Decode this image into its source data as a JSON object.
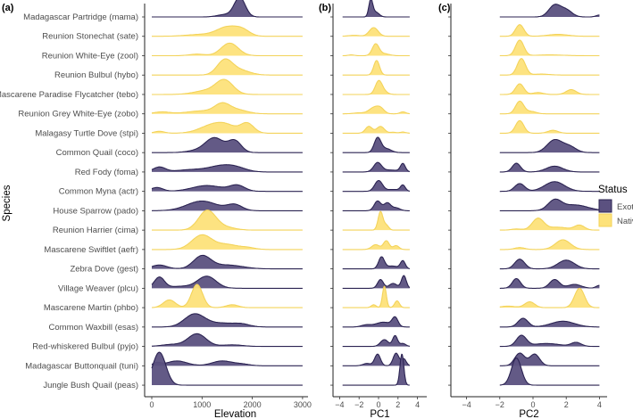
{
  "chart_data": {
    "type": "ridgeline",
    "ylabel": "Species",
    "legend": {
      "title": "Status",
      "placement": "right",
      "entries": [
        {
          "label": "Exotic",
          "fill": "#5b5180",
          "line": "#2b2352"
        },
        {
          "label": "Native",
          "fill": "#fde27a",
          "line": "#f3d35a"
        }
      ]
    },
    "panels": [
      {
        "tag": "(a)",
        "xlabel": "Elevation",
        "range": [
          0,
          3000
        ],
        "ticks": [
          0,
          1000,
          2000,
          3000
        ],
        "tick_labels": [
          "0",
          "1000",
          "2000",
          "3000"
        ]
      },
      {
        "tag": "(b)",
        "xlabel": "PC1",
        "range": [
          -3.7,
          3.2
        ],
        "ticks": [
          -4,
          -2,
          0,
          2,
          4
        ],
        "tick_labels": [
          "−4",
          "−2",
          "0",
          "2",
          "4"
        ]
      },
      {
        "tag": "(c)",
        "xlabel": "PC2",
        "range": [
          -2,
          4
        ],
        "ticks": [
          -4,
          -2,
          0,
          2,
          4
        ],
        "tick_labels": [
          "−4",
          "−2",
          "0",
          "2",
          "4"
        ]
      }
    ],
    "density_note": "each density is given as mixture components [mean, sd, relative peak height]",
    "species": [
      {
        "name": "Madagascar Partridge (mama)",
        "status": "Exotic",
        "d": [
          [
            [
              1750,
              110,
              1.0
            ],
            [
              1450,
              150,
              0.12
            ]
          ],
          [
            [
              -0.8,
              0.2,
              0.85
            ],
            [
              -0.3,
              0.35,
              0.25
            ]
          ],
          [
            [
              1.3,
              0.35,
              0.6
            ],
            [
              2.0,
              0.35,
              0.35
            ],
            [
              4,
              0.2,
              0.1
            ]
          ]
        ]
      },
      {
        "name": "Reunion Stonechat (sate)",
        "status": "Native",
        "d": [
          [
            [
              1500,
              200,
              0.45
            ],
            [
              1800,
              150,
              0.3
            ],
            [
              1000,
              300,
              0.1
            ]
          ],
          [
            [
              -0.5,
              0.45,
              0.45
            ],
            [
              -2.5,
              0.6,
              0.05
            ]
          ],
          [
            [
              -0.8,
              0.25,
              0.6
            ],
            [
              1.5,
              0.6,
              0.1
            ]
          ]
        ]
      },
      {
        "name": "Reunion White-Eye (zool)",
        "status": "Native",
        "d": [
          [
            [
              1550,
              170,
              0.65
            ],
            [
              900,
              150,
              0.08
            ]
          ],
          [
            [
              -0.3,
              0.35,
              0.6
            ],
            [
              -2.8,
              0.3,
              0.04
            ],
            [
              0.6,
              0.5,
              0.1
            ]
          ],
          [
            [
              -0.8,
              0.25,
              0.8
            ],
            [
              1,
              0.8,
              0.04
            ]
          ]
        ]
      },
      {
        "name": "Reunion Bulbul (hybo)",
        "status": "Native",
        "d": [
          [
            [
              1450,
              150,
              0.75
            ],
            [
              1750,
              200,
              0.25
            ]
          ],
          [
            [
              -0.2,
              0.3,
              0.75
            ]
          ],
          [
            [
              -0.7,
              0.25,
              0.85
            ],
            [
              0.5,
              0.5,
              0.05
            ]
          ]
        ]
      },
      {
        "name": "Mascarene Paradise Flycatcher (tebo)",
        "status": "Native",
        "d": [
          [
            [
              1450,
              170,
              0.7
            ],
            [
              1100,
              250,
              0.2
            ]
          ],
          [
            [
              0,
              0.35,
              0.65
            ],
            [
              0.5,
              0.4,
              0.15
            ]
          ],
          [
            [
              -0.8,
              0.25,
              0.55
            ],
            [
              0.3,
              0.3,
              0.1
            ],
            [
              2.3,
              0.3,
              0.25
            ]
          ]
        ]
      },
      {
        "name": "Reunion Grey White-Eye (zobo)",
        "status": "Native",
        "d": [
          [
            [
              1400,
              150,
              0.45
            ],
            [
              1000,
              300,
              0.15
            ],
            [
              1700,
              200,
              0.2
            ],
            [
              200,
              150,
              0.1
            ]
          ],
          [
            [
              -0.5,
              0.5,
              0.3
            ],
            [
              0.2,
              0.4,
              0.25
            ],
            [
              2.5,
              0.3,
              0.1
            ],
            [
              -2,
              0.6,
              0.05
            ]
          ],
          [
            [
              -0.8,
              0.25,
              0.65
            ],
            [
              -0.1,
              0.3,
              0.12
            ]
          ]
        ]
      },
      {
        "name": "Malagasy Turtle Dove (stpi)",
        "status": "Native",
        "d": [
          [
            [
              1200,
              250,
              0.4
            ],
            [
              1900,
              130,
              0.5
            ],
            [
              1500,
              200,
              0.3
            ],
            [
              150,
              100,
              0.1
            ]
          ],
          [
            [
              -1,
              0.35,
              0.35
            ],
            [
              0.2,
              0.4,
              0.35
            ],
            [
              1.5,
              0.3,
              0.05
            ],
            [
              2.5,
              0.3,
              0.06
            ]
          ],
          [
            [
              -0.8,
              0.25,
              0.65
            ],
            [
              1.2,
              0.3,
              0.15
            ]
          ]
        ]
      },
      {
        "name": "Common Quail (coco)",
        "status": "Exotic",
        "d": [
          [
            [
              1250,
              180,
              0.75
            ],
            [
              1650,
              130,
              0.6
            ],
            [
              900,
              200,
              0.1
            ]
          ],
          [
            [
              -0.1,
              0.35,
              0.75
            ],
            [
              0.8,
              0.5,
              0.2
            ]
          ],
          [
            [
              1.3,
              0.45,
              0.65
            ],
            [
              2.2,
              0.4,
              0.3
            ]
          ]
        ]
      },
      {
        "name": "Red Fody (foma)",
        "status": "Exotic",
        "d": [
          [
            [
              150,
              120,
              0.25
            ],
            [
              1400,
              250,
              0.3
            ],
            [
              800,
              300,
              0.12
            ],
            [
              1700,
              200,
              0.15
            ]
          ],
          [
            [
              -0.1,
              0.4,
              0.45
            ],
            [
              2.5,
              0.25,
              0.4
            ],
            [
              1.2,
              1,
              0.1
            ]
          ],
          [
            [
              -1,
              0.25,
              0.45
            ],
            [
              1.3,
              0.5,
              0.3
            ]
          ]
        ]
      },
      {
        "name": "Common Myna (actr)",
        "status": "Exotic",
        "d": [
          [
            [
              100,
              120,
              0.2
            ],
            [
              1100,
              300,
              0.3
            ],
            [
              1700,
              150,
              0.3
            ]
          ],
          [
            [
              0,
              0.4,
              0.55
            ],
            [
              2.5,
              0.25,
              0.3
            ],
            [
              1.5,
              0.7,
              0.1
            ]
          ],
          [
            [
              -0.8,
              0.3,
              0.4
            ],
            [
              1.3,
              0.6,
              0.5
            ]
          ]
        ]
      },
      {
        "name": "House Sparrow (pado)",
        "status": "Exotic",
        "d": [
          [
            [
              1000,
              300,
              0.5
            ],
            [
              1650,
              150,
              0.3
            ]
          ],
          [
            [
              -0.1,
              0.35,
              0.5
            ],
            [
              0.9,
              0.35,
              0.4
            ],
            [
              1.8,
              0.4,
              0.15
            ]
          ],
          [
            [
              1.3,
              0.4,
              0.5
            ],
            [
              2.5,
              0.8,
              0.3
            ]
          ]
        ]
      },
      {
        "name": "Reunion Harrier (cima)",
        "status": "Native",
        "d": [
          [
            [
              1100,
              170,
              1.0
            ],
            [
              1450,
              200,
              0.15
            ]
          ],
          [
            [
              0.2,
              0.25,
              0.95
            ],
            [
              0.8,
              0.25,
              0.25
            ]
          ],
          [
            [
              0.3,
              0.35,
              0.6
            ],
            [
              2.8,
              0.3,
              0.25
            ],
            [
              1.5,
              0.6,
              0.15
            ],
            [
              -1,
              0.3,
              0.06
            ]
          ]
        ]
      },
      {
        "name": "Mascarene Swiftlet (aefr)",
        "status": "Native",
        "d": [
          [
            [
              1000,
              200,
              0.75
            ],
            [
              1500,
              200,
              0.25
            ],
            [
              1900,
              150,
              0.1
            ]
          ],
          [
            [
              -0.3,
              0.4,
              0.25
            ],
            [
              0.8,
              0.3,
              0.45
            ],
            [
              1.8,
              0.3,
              0.2
            ]
          ],
          [
            [
              1.8,
              0.45,
              0.5
            ],
            [
              -0.8,
              0.3,
              0.1
            ]
          ]
        ]
      },
      {
        "name": "Zebra Dove (gest)",
        "status": "Exotic",
        "d": [
          [
            [
              1000,
              170,
              0.65
            ],
            [
              150,
              150,
              0.2
            ],
            [
              1500,
              300,
              0.2
            ]
          ],
          [
            [
              0.3,
              0.3,
              0.6
            ],
            [
              2.5,
              0.25,
              0.4
            ],
            [
              1.4,
              0.6,
              0.15
            ]
          ],
          [
            [
              -0.8,
              0.3,
              0.5
            ],
            [
              2.0,
              0.5,
              0.45
            ]
          ]
        ]
      },
      {
        "name": "Village Weaver (plcu)",
        "status": "Exotic",
        "d": [
          [
            [
              150,
              100,
              0.55
            ],
            [
              1100,
              180,
              0.6
            ],
            [
              600,
              300,
              0.1
            ]
          ],
          [
            [
              0.2,
              0.3,
              0.45
            ],
            [
              1.5,
              0.4,
              0.25
            ],
            [
              2.6,
              0.25,
              0.65
            ]
          ],
          [
            [
              -1,
              0.25,
              0.5
            ],
            [
              1.3,
              0.3,
              0.45
            ],
            [
              2.5,
              0.4,
              0.2
            ],
            [
              4,
              0.2,
              0.15
            ]
          ]
        ]
      },
      {
        "name": "Mascarene Martin (phbo)",
        "status": "Native",
        "d": [
          [
            [
              900,
              110,
              1.2
            ],
            [
              350,
              120,
              0.4
            ],
            [
              1600,
              120,
              0.15
            ]
          ],
          [
            [
              0.6,
              0.2,
              1.1
            ],
            [
              -0.5,
              0.25,
              0.15
            ],
            [
              1.9,
              0.25,
              0.35
            ]
          ],
          [
            [
              -0.2,
              0.3,
              0.3
            ],
            [
              2.8,
              0.3,
              1.0
            ],
            [
              -1.5,
              0.4,
              0.08
            ]
          ]
        ]
      },
      {
        "name": "Common Waxbill (esas)",
        "status": "Exotic",
        "d": [
          [
            [
              850,
              200,
              0.65
            ],
            [
              1400,
              300,
              0.2
            ],
            [
              1800,
              150,
              0.1
            ]
          ],
          [
            [
              0.5,
              0.8,
              0.25
            ],
            [
              1.7,
              0.3,
              0.45
            ],
            [
              -1.3,
              0.5,
              0.1
            ]
          ],
          [
            [
              -0.6,
              0.3,
              0.45
            ],
            [
              1.8,
              0.7,
              0.3
            ]
          ]
        ]
      },
      {
        "name": "Red-whiskered Bulbul (pyjo)",
        "status": "Exotic",
        "d": [
          [
            [
              900,
              180,
              0.65
            ],
            [
              400,
              200,
              0.1
            ],
            [
              1600,
              200,
              0.08
            ]
          ],
          [
            [
              0.6,
              0.4,
              0.35
            ],
            [
              1.7,
              0.25,
              0.55
            ],
            [
              2.5,
              0.3,
              0.15
            ]
          ],
          [
            [
              -0.7,
              0.3,
              0.55
            ],
            [
              2.6,
              0.3,
              0.2
            ],
            [
              0.8,
              0.8,
              0.15
            ]
          ]
        ]
      },
      {
        "name": "Madagascar Buttonquail (tuni)",
        "status": "Exotic",
        "d": [
          [
            [
              500,
              200,
              0.25
            ],
            [
              1400,
              200,
              0.25
            ],
            [
              100,
              80,
              0.15
            ],
            [
              1800,
              150,
              0.08
            ]
          ],
          [
            [
              -0.1,
              0.3,
              0.6
            ],
            [
              1.8,
              0.3,
              0.65
            ],
            [
              2.6,
              0.25,
              0.35
            ],
            [
              -1.2,
              0.4,
              0.12
            ]
          ],
          [
            [
              -0.8,
              0.3,
              0.65
            ],
            [
              0.1,
              0.3,
              0.6
            ]
          ]
        ]
      },
      {
        "name": "Jungle Bush Quail (peas)",
        "status": "Exotic",
        "d": [
          [
            [
              150,
              130,
              1.7
            ]
          ],
          [
            [
              2.4,
              0.2,
              1.6
            ]
          ],
          [
            [
              -1,
              0.3,
              1.4
            ]
          ]
        ]
      }
    ]
  }
}
